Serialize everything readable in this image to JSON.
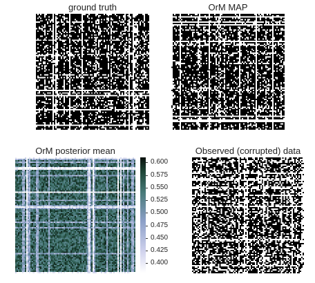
{
  "panels": {
    "ground_truth": {
      "title": "ground truth"
    },
    "orm_map": {
      "title": "OrM MAP"
    },
    "posterior_mean": {
      "title": "OrM posterior mean"
    },
    "observed": {
      "title": "Observed (corrupted) data"
    }
  },
  "colorbar": {
    "ticks": [
      "0.600",
      "0.575",
      "0.550",
      "0.525",
      "0.500",
      "0.475",
      "0.450",
      "0.425",
      "0.400"
    ],
    "vmin": 0.38,
    "vmax": 0.61,
    "colormap": "cubehelix-like (white to dark green)"
  },
  "colors": {
    "binary_on": "#000000",
    "binary_off": "#ffffff",
    "cmap_low": "#ffffff",
    "cmap_mid": "#8aa8c8",
    "cmap_high": "#0b1a14"
  }
}
